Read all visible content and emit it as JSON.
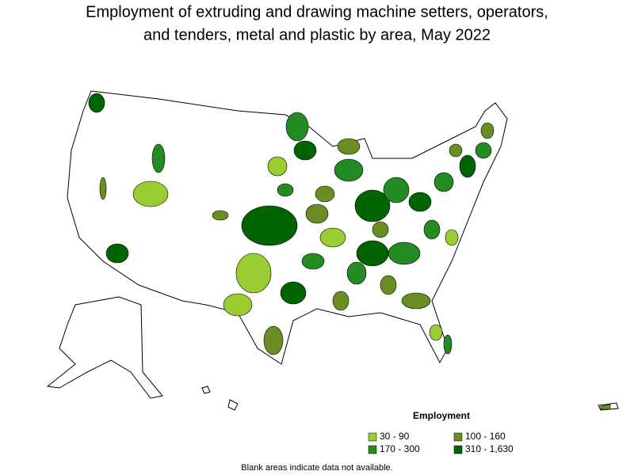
{
  "title_line_1": "Employment of extruding and drawing machine setters, operators,",
  "title_line_2": "and tenders, metal and plastic by area, May 2022",
  "legend": {
    "title": "Employment",
    "items": [
      {
        "label": "30 - 90",
        "color": "#9acd32"
      },
      {
        "label": "100 - 160",
        "color": "#6b8e23"
      },
      {
        "label": "170 - 300",
        "color": "#228b22"
      },
      {
        "label": "310 - 1,630",
        "color": "#006400"
      }
    ]
  },
  "footnote": "Blank areas indicate data not available."
}
